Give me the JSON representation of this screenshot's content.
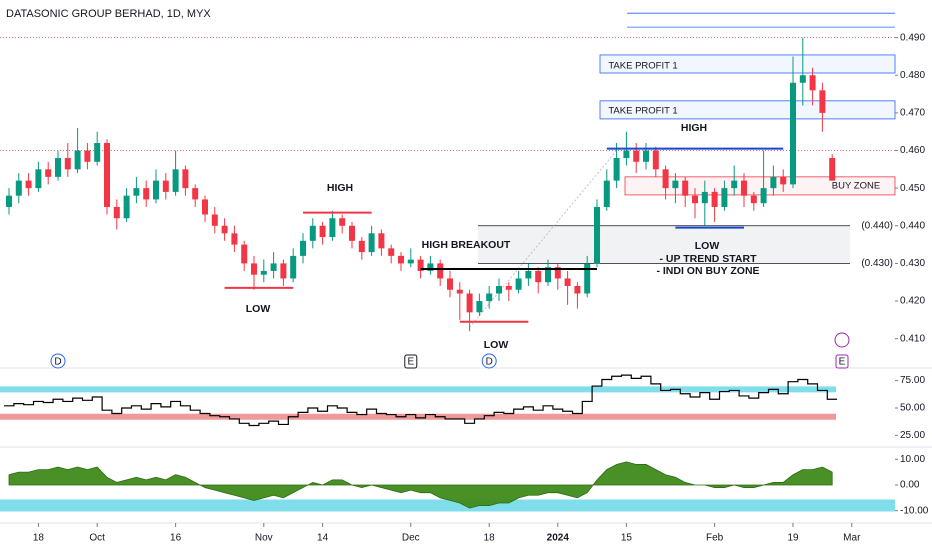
{
  "chart_data": {
    "type": "candlestick",
    "title": "DATASONIC GROUP BERHAD, 1D, MYX",
    "up_color": "#089981",
    "down_color": "#f23645",
    "ylim": [
      0.403,
      0.5
    ],
    "yticks": [
      {
        "value": 0.41,
        "label": "0.410"
      },
      {
        "value": 0.42,
        "label": "0.420"
      },
      {
        "value": 0.43,
        "label": "0.430"
      },
      {
        "value": 0.44,
        "label": "0.440"
      },
      {
        "value": 0.45,
        "label": "0.450"
      },
      {
        "value": 0.46,
        "label": "0.460"
      },
      {
        "value": 0.47,
        "label": "0.470"
      },
      {
        "value": 0.48,
        "label": "0.480"
      },
      {
        "value": 0.49,
        "label": "0.490"
      }
    ],
    "xticks": [
      {
        "value": 3,
        "label": "18"
      },
      {
        "value": 9,
        "label": "Oct"
      },
      {
        "value": 17,
        "label": "16"
      },
      {
        "value": 26,
        "label": "Nov"
      },
      {
        "value": 32,
        "label": "14"
      },
      {
        "value": 41,
        "label": "Dec"
      },
      {
        "value": 49,
        "label": "18"
      },
      {
        "value": 56,
        "label": "2024"
      },
      {
        "value": 63,
        "label": "15"
      },
      {
        "value": 72,
        "label": "Feb"
      },
      {
        "value": 80,
        "label": "19"
      },
      {
        "value": 86,
        "label": "Mar"
      }
    ],
    "candles": [
      [
        0.445,
        0.45,
        0.443,
        0.448
      ],
      [
        0.448,
        0.454,
        0.446,
        0.452
      ],
      [
        0.452,
        0.454,
        0.448,
        0.45
      ],
      [
        0.45,
        0.457,
        0.449,
        0.455
      ],
      [
        0.455,
        0.457,
        0.451,
        0.453
      ],
      [
        0.453,
        0.46,
        0.452,
        0.458
      ],
      [
        0.458,
        0.462,
        0.453,
        0.455
      ],
      [
        0.455,
        0.466,
        0.454,
        0.46
      ],
      [
        0.46,
        0.462,
        0.455,
        0.457
      ],
      [
        0.457,
        0.465,
        0.456,
        0.462
      ],
      [
        0.462,
        0.463,
        0.443,
        0.445
      ],
      [
        0.445,
        0.447,
        0.439,
        0.442
      ],
      [
        0.442,
        0.45,
        0.441,
        0.448
      ],
      [
        0.448,
        0.453,
        0.446,
        0.45
      ],
      [
        0.45,
        0.452,
        0.445,
        0.447
      ],
      [
        0.447,
        0.455,
        0.446,
        0.452
      ],
      [
        0.452,
        0.454,
        0.447,
        0.449
      ],
      [
        0.449,
        0.46,
        0.448,
        0.455
      ],
      [
        0.455,
        0.456,
        0.448,
        0.45
      ],
      [
        0.45,
        0.451,
        0.445,
        0.447
      ],
      [
        0.447,
        0.448,
        0.441,
        0.443
      ],
      [
        0.443,
        0.445,
        0.438,
        0.44
      ],
      [
        0.44,
        0.442,
        0.436,
        0.438
      ],
      [
        0.438,
        0.44,
        0.433,
        0.435
      ],
      [
        0.435,
        0.436,
        0.428,
        0.43
      ],
      [
        0.43,
        0.432,
        0.423,
        0.427
      ],
      [
        0.427,
        0.431,
        0.425,
        0.428
      ],
      [
        0.428,
        0.433,
        0.426,
        0.43
      ],
      [
        0.43,
        0.431,
        0.424,
        0.426
      ],
      [
        0.426,
        0.434,
        0.425,
        0.432
      ],
      [
        0.432,
        0.438,
        0.43,
        0.436
      ],
      [
        0.436,
        0.442,
        0.434,
        0.44
      ],
      [
        0.44,
        0.441,
        0.435,
        0.437
      ],
      [
        0.437,
        0.444,
        0.436,
        0.442
      ],
      [
        0.442,
        0.443,
        0.438,
        0.44
      ],
      [
        0.44,
        0.441,
        0.434,
        0.436
      ],
      [
        0.436,
        0.437,
        0.431,
        0.433
      ],
      [
        0.433,
        0.44,
        0.432,
        0.438
      ],
      [
        0.438,
        0.439,
        0.432,
        0.434
      ],
      [
        0.434,
        0.435,
        0.43,
        0.432
      ],
      [
        0.432,
        0.433,
        0.428,
        0.43
      ],
      [
        0.43,
        0.434,
        0.429,
        0.431
      ],
      [
        0.431,
        0.432,
        0.426,
        0.428
      ],
      [
        0.428,
        0.432,
        0.427,
        0.43
      ],
      [
        0.43,
        0.431,
        0.424,
        0.426
      ],
      [
        0.426,
        0.428,
        0.421,
        0.423
      ],
      [
        0.423,
        0.425,
        0.415,
        0.422
      ],
      [
        0.422,
        0.423,
        0.412,
        0.417
      ],
      [
        0.417,
        0.422,
        0.416,
        0.42
      ],
      [
        0.42,
        0.424,
        0.418,
        0.422
      ],
      [
        0.422,
        0.426,
        0.42,
        0.424
      ],
      [
        0.424,
        0.425,
        0.42,
        0.423
      ],
      [
        0.423,
        0.428,
        0.422,
        0.426
      ],
      [
        0.426,
        0.43,
        0.424,
        0.428
      ],
      [
        0.428,
        0.429,
        0.422,
        0.425
      ],
      [
        0.425,
        0.431,
        0.424,
        0.429
      ],
      [
        0.429,
        0.43,
        0.423,
        0.426
      ],
      [
        0.426,
        0.428,
        0.419,
        0.424
      ],
      [
        0.424,
        0.425,
        0.418,
        0.422
      ],
      [
        0.422,
        0.432,
        0.421,
        0.43
      ],
      [
        0.43,
        0.447,
        0.429,
        0.445
      ],
      [
        0.445,
        0.455,
        0.444,
        0.452
      ],
      [
        0.452,
        0.462,
        0.45,
        0.458
      ],
      [
        0.458,
        0.465,
        0.456,
        0.46
      ],
      [
        0.46,
        0.462,
        0.454,
        0.457
      ],
      [
        0.457,
        0.462,
        0.455,
        0.46
      ],
      [
        0.46,
        0.461,
        0.453,
        0.455
      ],
      [
        0.455,
        0.456,
        0.447,
        0.45
      ],
      [
        0.45,
        0.454,
        0.446,
        0.452
      ],
      [
        0.452,
        0.453,
        0.445,
        0.448
      ],
      [
        0.448,
        0.45,
        0.442,
        0.446
      ],
      [
        0.446,
        0.452,
        0.44,
        0.449
      ],
      [
        0.449,
        0.45,
        0.441,
        0.445
      ],
      [
        0.445,
        0.452,
        0.444,
        0.45
      ],
      [
        0.45,
        0.456,
        0.448,
        0.452
      ],
      [
        0.452,
        0.454,
        0.445,
        0.448
      ],
      [
        0.448,
        0.449,
        0.444,
        0.446
      ],
      [
        0.446,
        0.46,
        0.445,
        0.45
      ],
      [
        0.45,
        0.456,
        0.448,
        0.453
      ],
      [
        0.453,
        0.455,
        0.449,
        0.451
      ],
      [
        0.451,
        0.485,
        0.45,
        0.478
      ],
      [
        0.478,
        0.49,
        0.472,
        0.48
      ],
      [
        0.48,
        0.482,
        0.472,
        0.476
      ],
      [
        0.476,
        0.478,
        0.465,
        0.47
      ],
      [
        0.458,
        0.459,
        0.452,
        0.452
      ]
    ],
    "dotted_levels": [
      0.49,
      0.46
    ],
    "top_lines": [
      0.4928,
      0.4965
    ],
    "tp_zones": [
      [
        0.4806,
        0.4854
      ],
      [
        0.4684,
        0.4732
      ]
    ],
    "buy_zone": [
      0.4482,
      0.453
    ],
    "levels": [
      {
        "value": 0.44,
        "label": "(0.440)"
      },
      {
        "value": 0.43,
        "label": "(0.430)"
      }
    ],
    "lines": [
      {
        "value": 0.4435,
        "from": 30,
        "to": 37,
        "color": "#f23645"
      },
      {
        "value": 0.4235,
        "from": 22,
        "to": 29,
        "color": "#f23645"
      },
      {
        "value": 0.4285,
        "from": 42,
        "to": 60,
        "color": "#000000"
      },
      {
        "value": 0.4145,
        "from": 46,
        "to": 53,
        "color": "#f23645"
      },
      {
        "value": 0.4605,
        "from": 61,
        "to": 79,
        "color": "#1848cc"
      },
      {
        "value": 0.4395,
        "from": 68,
        "to": 75,
        "color": "#1848cc"
      }
    ],
    "annotations": [
      "HIGH",
      "LOW",
      "HIGH BREAKOUT",
      "LOW",
      "TAKE PROFIT 1",
      "TAKE PROFIT 1",
      "HIGH",
      "LOW",
      "- UP TREND START",
      "- INDI ON BUY ZONE",
      "BUY ZONE"
    ],
    "events": [
      {
        "label": "D",
        "index": 5
      },
      {
        "label": "E",
        "index": 41
      },
      {
        "label": "D",
        "index": 49
      },
      {
        "label": "E",
        "index": 85
      }
    ],
    "rsi": {
      "ylim": [
        14.4,
        86.5
      ],
      "yticks": [
        {
          "value": 25,
          "label": "25.00"
        },
        {
          "value": 50,
          "label": "50.00"
        },
        {
          "value": 75,
          "label": "75.00"
        }
      ],
      "upper_band": 67,
      "lower_band": 42,
      "values": [
        52,
        54,
        53,
        56,
        55,
        58,
        56,
        59,
        57,
        60,
        48,
        45,
        50,
        52,
        49,
        54,
        51,
        56,
        52,
        48,
        45,
        43,
        42,
        40,
        36,
        34,
        36,
        38,
        35,
        42,
        46,
        50,
        47,
        52,
        50,
        46,
        44,
        49,
        45,
        44,
        42,
        44,
        41,
        44,
        42,
        40,
        40,
        36,
        40,
        43,
        46,
        45,
        49,
        51,
        48,
        52,
        49,
        47,
        45,
        56,
        70,
        76,
        79,
        80,
        77,
        79,
        72,
        66,
        67,
        63,
        60,
        64,
        58,
        65,
        66,
        61,
        59,
        64,
        67,
        63,
        74,
        76,
        72,
        66,
        58
      ]
    },
    "oscillator": {
      "ylim": [
        -14.8,
        14.8
      ],
      "yticks": [
        {
          "value": 10,
          "label": "10.00"
        },
        {
          "value": 0,
          "label": "0.00"
        },
        {
          "value": -10,
          "label": "-10.00"
        }
      ],
      "band": -8,
      "color": "#3f8a1a",
      "values": [
        4,
        5,
        5,
        6,
        6,
        7,
        6,
        7,
        6,
        7,
        3,
        1,
        2,
        3,
        2,
        3,
        2,
        4,
        3,
        1,
        -1,
        -2,
        -3,
        -4,
        -5,
        -6,
        -5,
        -4,
        -5,
        -3,
        -1,
        1,
        0,
        2,
        2,
        0,
        -1,
        0,
        -1,
        -2,
        -3,
        -2,
        -3,
        -3,
        -5,
        -6,
        -7,
        -9,
        -8,
        -8,
        -7,
        -7,
        -5,
        -4,
        -4,
        -3,
        -3,
        -4,
        -5,
        -3,
        2,
        6,
        8,
        9,
        8,
        8,
        6,
        4,
        3,
        1,
        0,
        0,
        -1,
        -1,
        0,
        -1,
        -1,
        0,
        1,
        1,
        4,
        6,
        6,
        7,
        5
      ]
    }
  }
}
